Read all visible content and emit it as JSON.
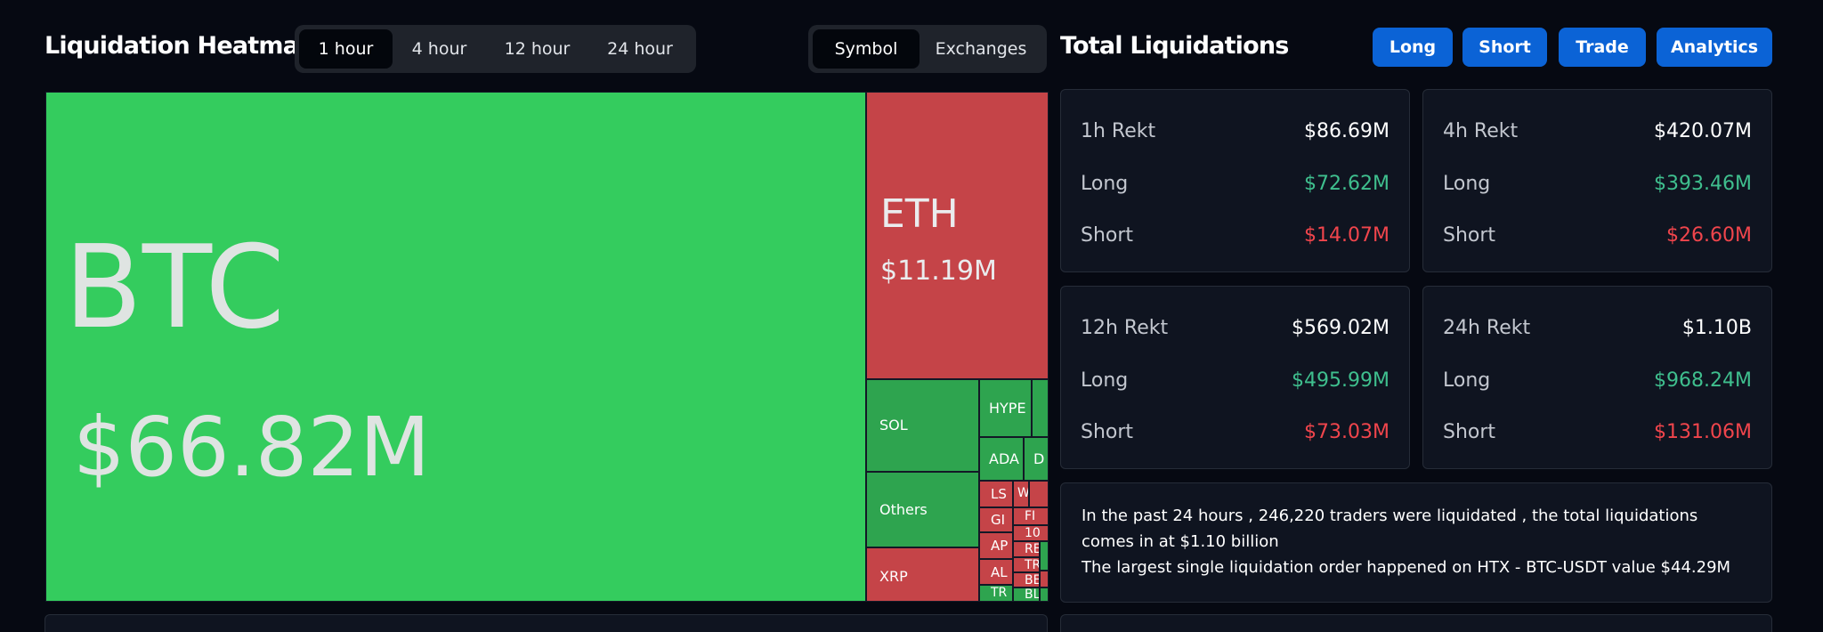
{
  "heatmap": {
    "title": "Liquidation Heatmap",
    "time_tabs": [
      {
        "label": "1 hour",
        "active": true
      },
      {
        "label": "4 hour",
        "active": false
      },
      {
        "label": "12 hour",
        "active": false
      },
      {
        "label": "24 hour",
        "active": false
      }
    ],
    "view_tabs": [
      {
        "label": "Symbol",
        "active": true
      },
      {
        "label": "Exchanges",
        "active": false
      }
    ],
    "tiles": [
      {
        "symbol": "BTC",
        "value": "$66.82M",
        "color": "#34cc5e",
        "side": "long"
      },
      {
        "symbol": "ETH",
        "value": "$11.19M",
        "color": "#c54448",
        "side": "short"
      },
      {
        "symbol": "SOL",
        "color": "#2ea44f"
      },
      {
        "symbol": "Others",
        "color": "#2ea44f"
      },
      {
        "symbol": "XRP",
        "color": "#c54448"
      },
      {
        "symbol": "HYPE",
        "color": "#2ea44f"
      },
      {
        "symbol": "ADA",
        "color": "#2ea44f"
      },
      {
        "symbol": "D",
        "color": "#2ea44f"
      },
      {
        "symbol": "LS",
        "color": "#c54448"
      },
      {
        "symbol": "W",
        "color": "#c54448"
      },
      {
        "symbol": "GI",
        "color": "#c54448"
      },
      {
        "symbol": "FI",
        "color": "#c54448"
      },
      {
        "symbol": "10",
        "color": "#c54448"
      },
      {
        "symbol": "AP",
        "color": "#c54448"
      },
      {
        "symbol": "RE",
        "color": "#c54448"
      },
      {
        "symbol": "TR",
        "color": "#c54448"
      },
      {
        "symbol": "AL",
        "color": "#c54448"
      },
      {
        "symbol": "BE",
        "color": "#c54448"
      },
      {
        "symbol": "TR",
        "color": "#2ea44f"
      },
      {
        "symbol": "BL",
        "color": "#2ea44f"
      }
    ]
  },
  "totals": {
    "title": "Total Liquidations",
    "buttons": [
      "Long",
      "Short",
      "Trade",
      "Analytics"
    ],
    "cards": [
      {
        "period": "1h Rekt",
        "total": "$86.69M",
        "long_label": "Long",
        "long": "$72.62M",
        "short_label": "Short",
        "short": "$14.07M"
      },
      {
        "period": "4h Rekt",
        "total": "$420.07M",
        "long_label": "Long",
        "long": "$393.46M",
        "short_label": "Short",
        "short": "$26.60M"
      },
      {
        "period": "12h Rekt",
        "total": "$569.02M",
        "long_label": "Long",
        "long": "$495.99M",
        "short_label": "Short",
        "short": "$73.03M"
      },
      {
        "period": "24h Rekt",
        "total": "$1.10B",
        "long_label": "Long",
        "long": "$968.24M",
        "short_label": "Short",
        "short": "$131.06M"
      }
    ],
    "summary_line1": "In the past 24 hours , 246,220 traders were liquidated , the total liquidations comes in at $1.10 billion",
    "summary_line2": "The largest single liquidation order happened on HTX - BTC-USDT value $44.29M"
  },
  "colors": {
    "background": "#060912",
    "long_green": "#3fbf8e",
    "short_red": "#f0454c",
    "accent_blue": "#0b63d6"
  }
}
